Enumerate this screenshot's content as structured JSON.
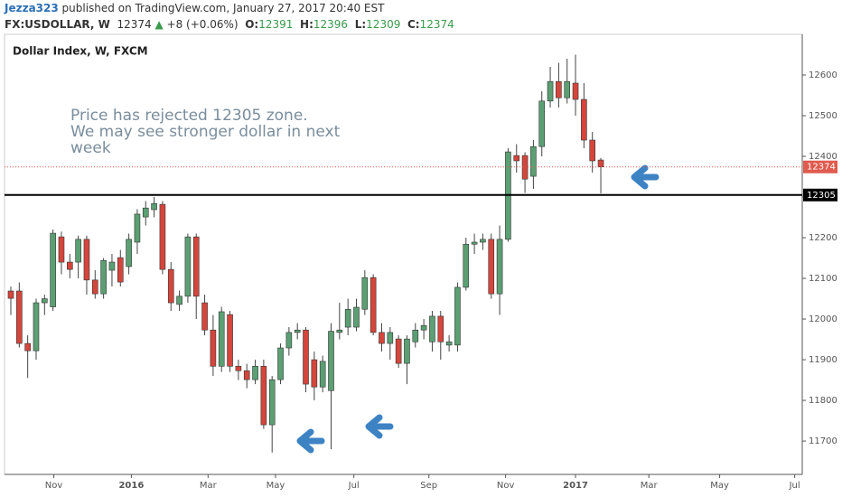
{
  "header": {
    "author": "Jezza323",
    "published": "published on TradingView.com, January 27, 2017 20:40 EST",
    "symbol": "FX:USDOLLAR, W",
    "arrow": "▲",
    "change": "+8 (+0.06%)",
    "open_label": "O:",
    "high_label": "H:",
    "low_label": "L:",
    "close_label": "C:"
  },
  "chart_data": {
    "type": "candlestick",
    "title": "Dollar Index, W, FXCM",
    "annotation": [
      "Price has rejected 12305 zone.",
      "We may see stronger dollar in next",
      "week"
    ],
    "categories": [
      null,
      null,
      null,
      null,
      null,
      null,
      null,
      null,
      null,
      null,
      null,
      null,
      null,
      null,
      null,
      null,
      null,
      null,
      null,
      null,
      null,
      null,
      null,
      null,
      null,
      null,
      null,
      null,
      null,
      null,
      null,
      null,
      null,
      null,
      null,
      null,
      null,
      null,
      null,
      null,
      null,
      null,
      null,
      null,
      null,
      null,
      null,
      null,
      null,
      null,
      null,
      null,
      null,
      null,
      null,
      null,
      null,
      null,
      null,
      null,
      null,
      null,
      null,
      null,
      null,
      null,
      null,
      null,
      null,
      null,
      null
    ],
    "open": [
      12069,
      12069,
      11940,
      11922,
      12040,
      12030,
      12202,
      12140,
      12140,
      12196,
      12096,
      12062,
      12120,
      12151,
      12129,
      12189,
      12251,
      12269,
      12282,
      12122,
      12036,
      12056,
      12202,
      12040,
      11973,
      11884,
      12011,
      11884,
      11873,
      11851,
      11884,
      11740,
      11851,
      11929,
      11967,
      11973,
      11900,
      11833,
      11824,
      11967,
      11980,
      11980,
      12024,
      12102,
      11967,
      11940,
      11951,
      11891,
      11944,
      11973,
      11944,
      12007,
      11936,
      11936,
      12078,
      12184,
      12189,
      12196,
      12062,
      12196,
      12402,
      12402,
      12351,
      12424,
      12536,
      12584,
      12544,
      12580,
      12540,
      12440,
      12391
    ],
    "high": [
      12080,
      12090,
      11960,
      12050,
      12060,
      12220,
      12215,
      12160,
      12205,
      12205,
      12120,
      12150,
      12160,
      12170,
      12210,
      12270,
      12290,
      12300,
      12290,
      12140,
      12070,
      12210,
      12210,
      12060,
      12010,
      12030,
      12020,
      11900,
      11890,
      11900,
      11900,
      11860,
      11940,
      11980,
      11990,
      11980,
      11920,
      11910,
      11990,
      12040,
      12050,
      12050,
      12120,
      12110,
      11990,
      11980,
      11960,
      11960,
      11990,
      12000,
      12020,
      12020,
      11960,
      12090,
      12200,
      12210,
      12210,
      12210,
      12230,
      12420,
      12430,
      12410,
      12440,
      12560,
      12620,
      12630,
      12640,
      12650,
      12580,
      12460,
      12396
    ],
    "low": [
      12010,
      11930,
      11855,
      11900,
      12010,
      12020,
      12110,
      12100,
      12100,
      12060,
      12050,
      12050,
      12080,
      12080,
      12110,
      12160,
      12230,
      12250,
      12110,
      12020,
      12020,
      12040,
      12000,
      11960,
      11860,
      11870,
      11870,
      11850,
      11830,
      11840,
      11730,
      11672,
      11840,
      11910,
      11950,
      11820,
      11800,
      11820,
      11680,
      11950,
      11960,
      11970,
      12010,
      11960,
      11920,
      11900,
      11880,
      11840,
      11930,
      11950,
      11920,
      11900,
      11920,
      11920,
      12070,
      12160,
      12170,
      12050,
      12010,
      12190,
      12360,
      12310,
      12320,
      12400,
      12520,
      12520,
      12530,
      12500,
      12420,
      12360,
      12309
    ],
    "close": [
      12051,
      11940,
      11922,
      12040,
      12050,
      12211,
      12140,
      12122,
      12196,
      12096,
      12062,
      12144,
      12140,
      12091,
      12196,
      12258,
      12273,
      12284,
      12122,
      12040,
      12056,
      12202,
      12056,
      11973,
      11884,
      12018,
      11884,
      11873,
      11851,
      11884,
      11740,
      11851,
      11929,
      11967,
      11973,
      11840,
      11833,
      11896,
      11970,
      11973,
      12024,
      12029,
      12102,
      11967,
      11940,
      11967,
      11891,
      11951,
      11973,
      11984,
      12007,
      11944,
      11944,
      12078,
      12184,
      12189,
      12196,
      12062,
      12196,
      12411,
      12389,
      12344,
      12424,
      12536,
      12584,
      12544,
      12584,
      12540,
      12440,
      12389,
      12374
    ],
    "up_color": "#5b9f73",
    "down_color": "#d4463c",
    "support_level": 12305,
    "support_color": "#000000",
    "last_color": "#e05a4e",
    "arrow_color": "#3d83c4",
    "xlim": [
      -0.75,
      93.9
    ],
    "xticks": [
      {
        "value": 5.1,
        "label": "Nov"
      },
      {
        "value": 14.3,
        "label": "2016"
      },
      {
        "value": 23.4,
        "label": "Mar"
      },
      {
        "value": 31.4,
        "label": "May"
      },
      {
        "value": 40.7,
        "label": "Jul"
      },
      {
        "value": 49.6,
        "label": "Sep"
      },
      {
        "value": 58.7,
        "label": "Nov"
      },
      {
        "value": 67.0,
        "label": "2017"
      },
      {
        "value": 75.7,
        "label": "Mar"
      },
      {
        "value": 84.1,
        "label": "May"
      },
      {
        "value": 93.0,
        "label": "Jul"
      }
    ],
    "ylim": [
      11618,
      12700
    ],
    "yticks": [
      11700,
      11800,
      11900,
      12000,
      12100,
      12200,
      12300,
      12400,
      12500,
      12600
    ]
  }
}
